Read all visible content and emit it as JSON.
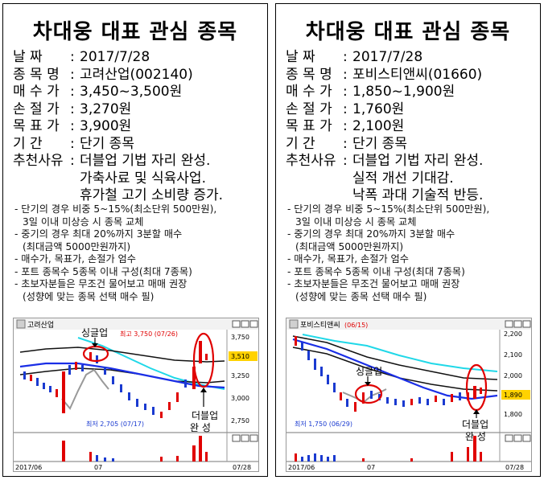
{
  "cards": [
    {
      "title": "차대웅 대표 관심 종목",
      "rows": [
        {
          "label": "날    짜",
          "value": "2017/7/28"
        },
        {
          "label": "종 목 명",
          "value": "고려산업(002140)"
        },
        {
          "label": "매 수 가",
          "value": "3,450~3,500원"
        },
        {
          "label": "손 절 가",
          "value": "3,270원"
        },
        {
          "label": "목 표 가",
          "value": "3,900원"
        },
        {
          "label": "기    간",
          "value": "단기 종목"
        }
      ],
      "reason_label": "추천사유",
      "reasons": [
        "더블업 기법 자리 완성.",
        "가축사료 및 식육사업.",
        "휴가철 고기 소비량 증가."
      ],
      "notes": [
        [
          "- 단기의 경우 비중 5~15%(최소단위  500만원),",
          "3일 이내 미상승 시 종목 교체"
        ],
        [
          "- 중기의 경우 최대 20%까지 3분할 매수",
          "(최대금액  5000만원까지)"
        ],
        [
          "- 매수가, 목표가, 손절가 엄수"
        ],
        [
          "- 포트 종목수 5종목 이내 구성(최대 7종목)"
        ],
        [
          "- 초보자분들은 무조건 물어보고 매매 권장",
          "(성향에 맞는 종목 선택 매수 필)"
        ]
      ],
      "chart": {
        "stock_label": "고려산업",
        "high_label": "최고 3,750 (07/26)",
        "low_label": "최저 2,705 (07/17)",
        "y_ticks": [
          "3,750",
          "3,510",
          "3,250",
          "3,000",
          "2,750"
        ],
        "current_price": "3,510",
        "annot_single": "싱글업",
        "annot_double_1": "더블업",
        "annot_double_2": "완  성",
        "x_labels": [
          "2017/06",
          "07",
          "07/28"
        ]
      }
    },
    {
      "title": "차대웅 대표 관심 종목",
      "rows": [
        {
          "label": "날    짜",
          "value": "2017/7/28"
        },
        {
          "label": "종 목 명",
          "value": "포비스티앤씨(01660)"
        },
        {
          "label": "매 수 가",
          "value": "1,850~1,900원"
        },
        {
          "label": "손 절 가",
          "value": "1,760원"
        },
        {
          "label": "목 표 가",
          "value": "2,100원"
        },
        {
          "label": "기    간",
          "value": "단기 종목"
        }
      ],
      "reason_label": "추천사유",
      "reasons": [
        "더블업 기법 자리 완성.",
        "실적 개선 기대감.",
        "낙폭 과대 기술적 반등."
      ],
      "notes": [
        [
          "- 단기의 경우 비중 5~15%(최소단위  500만원),",
          "3일 이내 미상승 시 종목 교체"
        ],
        [
          "- 중기의 경우 최대 20%까지 3분할 매수",
          "(최대금액  5000만원까지)"
        ],
        [
          "- 매수가, 목표가, 손절가 엄수"
        ],
        [
          "- 포트 종목수 5종목 이내 구성(최대 7종목)"
        ],
        [
          "- 초보자분들은 무조건 물어보고 매매 권장",
          "(성향에 맞는 종목 선택 매수 필)"
        ]
      ],
      "chart": {
        "stock_label": "포비스티앤씨",
        "high_label": "(06/15)",
        "low_label": "최저 1,750 (06/29)",
        "y_ticks": [
          "2,200",
          "2,100",
          "2,000",
          "1,890",
          "1,800"
        ],
        "current_price": "1,890",
        "annot_single": "싱글업",
        "annot_double_1": "더블업",
        "annot_double_2": "완  성",
        "x_labels": [
          "2017/06",
          "07",
          "07/28"
        ]
      }
    }
  ],
  "colors": {
    "circle": "#e00000",
    "ma_blue": "#1a2ee6",
    "ma_cyan": "#20d8e8",
    "up": "#e00000",
    "down": "#1a3ad0",
    "price_box": "#ffd200"
  }
}
